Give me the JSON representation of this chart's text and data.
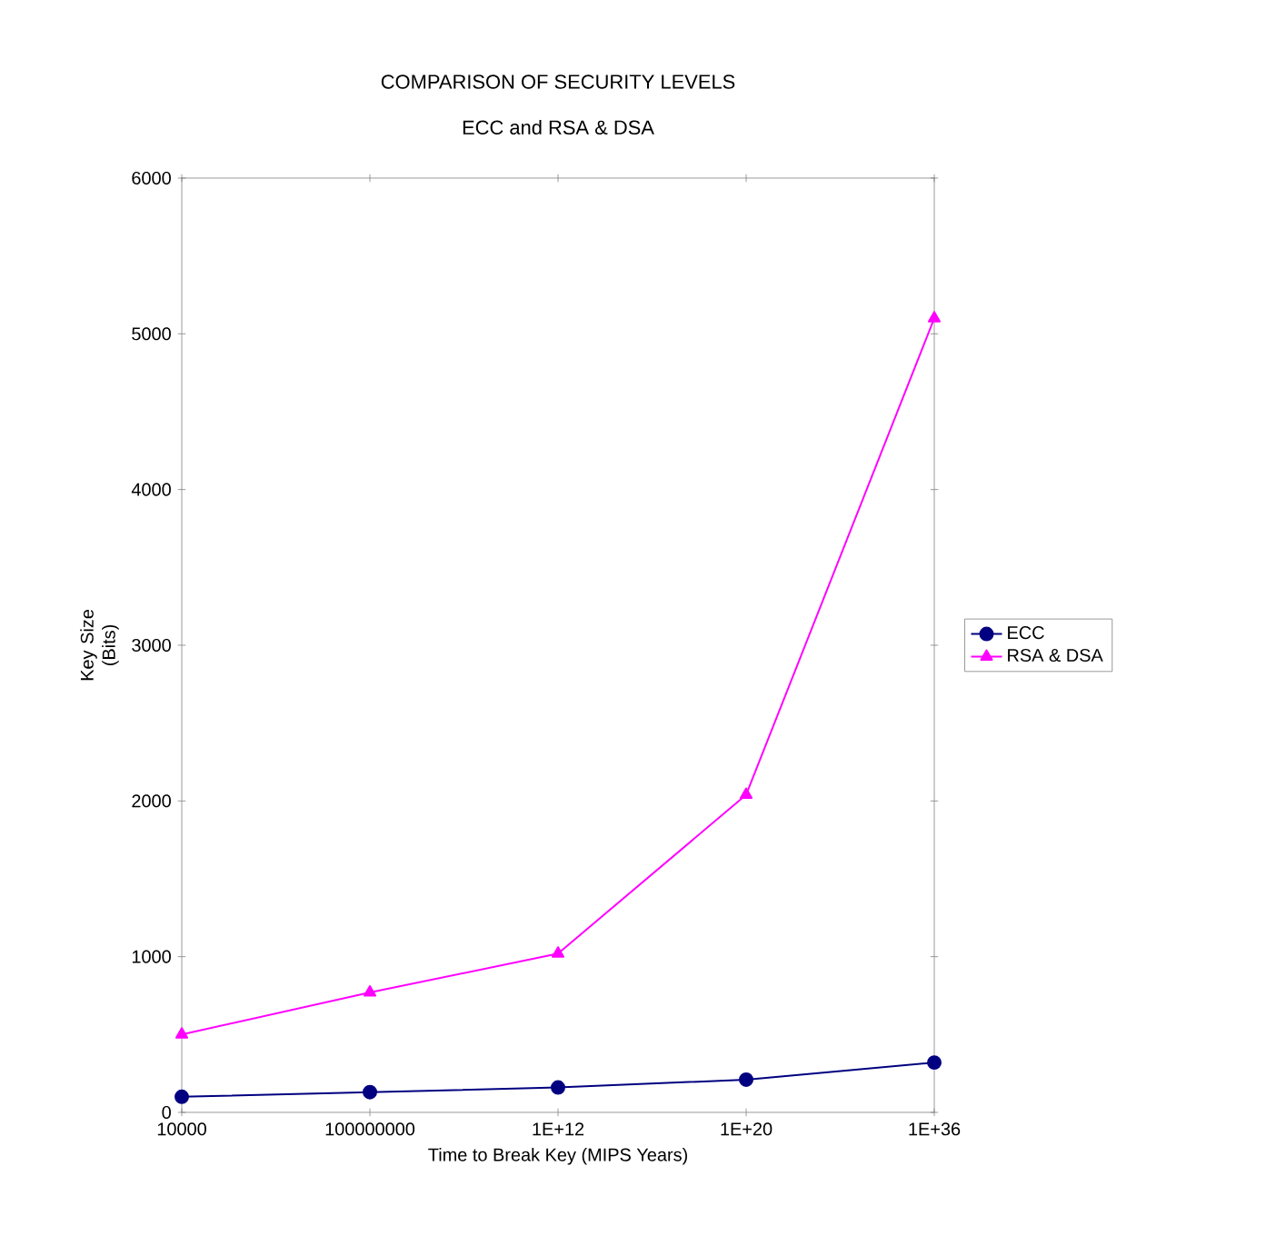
{
  "chart_data": {
    "type": "line",
    "title": "COMPARISON OF SECURITY LEVELS",
    "subtitle": "ECC and RSA & DSA",
    "xlabel": "Time to Break Key (MIPS Years)",
    "ylabel": "Key Size (Bits)",
    "categories": [
      "10000",
      "100000000",
      "1E+12",
      "1E+20",
      "1E+36"
    ],
    "series": [
      {
        "name": "ECC",
        "color": "#000080",
        "marker": "circle",
        "values": [
          100,
          130,
          160,
          210,
          320
        ]
      },
      {
        "name": "RSA & DSA",
        "color": "#ff00ff",
        "marker": "triangle",
        "values": [
          500,
          770,
          1020,
          2040,
          5100
        ]
      }
    ],
    "ylim": [
      0,
      6000
    ],
    "yticks": [
      0,
      1000,
      2000,
      3000,
      4000,
      5000,
      6000
    ],
    "grid": false,
    "legend": "right",
    "line_style": "solid"
  }
}
